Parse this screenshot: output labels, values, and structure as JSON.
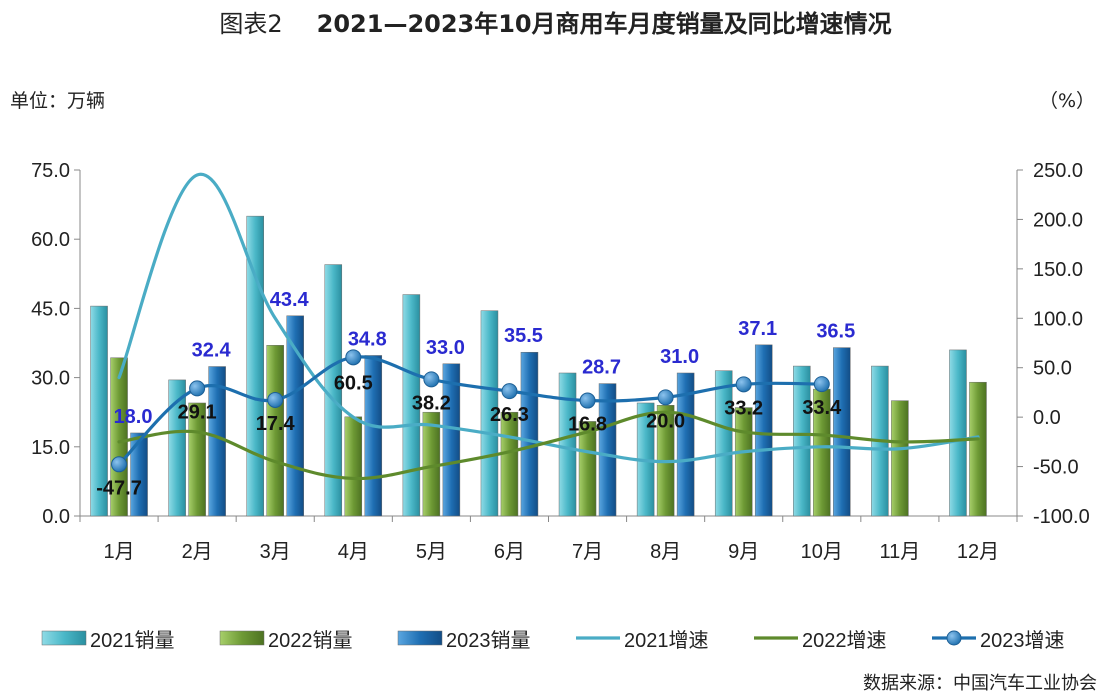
{
  "title": {
    "tag": "图表2",
    "main": "2021—2023年10月商用车月度销量及同比增速情况"
  },
  "unit_left": "单位：万辆",
  "unit_right": "（%）",
  "source": "数据来源：中国汽车工业协会",
  "colors": {
    "sales_2021": "#4bb8c8",
    "sales_2022": "#6e9a35",
    "sales_2023": "#1f6fb3",
    "growth_2021": "#4aacc5",
    "growth_2022": "#5e8a2c",
    "growth_2023": "#1d6fae",
    "label_2023": "#2a2ad0"
  },
  "chart_data": {
    "type": "bar",
    "categories": [
      "1月",
      "2月",
      "3月",
      "4月",
      "5月",
      "6月",
      "7月",
      "8月",
      "9月",
      "10月",
      "11月",
      "12月"
    ],
    "y_left": {
      "min": 0,
      "max": 75,
      "ticks": [
        "0.0",
        "15.0",
        "30.0",
        "45.0",
        "60.0",
        "75.0"
      ]
    },
    "y_right": {
      "min": -100,
      "max": 250,
      "ticks": [
        "-100.0",
        "-50.0",
        "0.0",
        "50.0",
        "100.0",
        "150.0",
        "200.0",
        "250.0"
      ]
    },
    "bar_series": [
      {
        "name": "2021销量",
        "values": [
          45.5,
          29.5,
          65.0,
          54.5,
          48.0,
          44.5,
          31.0,
          24.5,
          31.5,
          32.5,
          32.5,
          36.0
        ]
      },
      {
        "name": "2022销量",
        "values": [
          34.3,
          24.5,
          37.0,
          21.5,
          22.5,
          22.5,
          20.5,
          24.0,
          23.5,
          27.5,
          25.0,
          29.0
        ]
      },
      {
        "name": "2023销量",
        "values": [
          18.0,
          32.4,
          43.4,
          34.8,
          33.0,
          35.5,
          28.7,
          31.0,
          37.1,
          36.5,
          null,
          null
        ]
      }
    ],
    "bar_labels_2023": [
      "18.0",
      "32.4",
      "43.4",
      "34.8",
      "33.0",
      "35.5",
      "28.7",
      "31.0",
      "37.1",
      "36.5"
    ],
    "line_series": [
      {
        "name": "2021增速",
        "values": [
          40,
          245,
          100,
          0,
          -8,
          -20,
          -35,
          -45,
          -35,
          -30,
          -32,
          -20
        ]
      },
      {
        "name": "2022增速",
        "values": [
          -25,
          -15,
          -45,
          -62,
          -50,
          -35,
          -15,
          5,
          -15,
          -18,
          -25,
          -22
        ]
      },
      {
        "name": "2023增速",
        "values": [
          -47.7,
          29.1,
          17.4,
          60.5,
          38.2,
          26.3,
          16.8,
          20.0,
          33.2,
          33.4,
          null,
          null
        ]
      }
    ],
    "line_labels_2023": [
      "-47.7",
      "29.1",
      "17.4",
      "60.5",
      "38.2",
      "26.3",
      "16.8",
      "20.0",
      "33.2",
      "33.4"
    ],
    "legend": [
      "2021销量",
      "2022销量",
      "2023销量",
      "2021增速",
      "2022增速",
      "2023增速"
    ],
    "legend_position": "bottom",
    "grid": false
  }
}
